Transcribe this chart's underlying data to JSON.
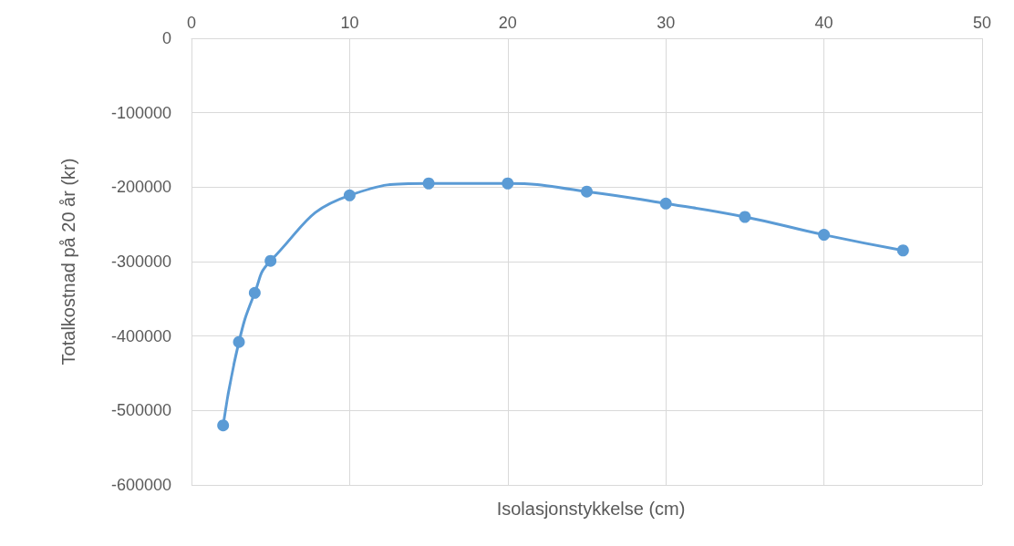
{
  "chart_data": {
    "type": "line",
    "xlabel": "Isolasjonstykkelse (cm)",
    "ylabel": "Totalkostnad på 20 år (kr)",
    "x": [
      2,
      3,
      4,
      5,
      10,
      15,
      20,
      25,
      30,
      35,
      40,
      45
    ],
    "series": [
      {
        "color": "#5b9bd5",
        "values": [
          -520000,
          -408000,
          -342000,
          -299000,
          -211000,
          -195000,
          -195000,
          -206000,
          -222000,
          -240000,
          -264000,
          -285000
        ]
      }
    ],
    "xlim": [
      0,
      50
    ],
    "xticks": [
      0,
      10,
      20,
      30,
      40,
      50
    ],
    "ylim": [
      -600000,
      0
    ],
    "yticks": [
      -600000,
      -500000,
      -400000,
      -300000,
      -200000,
      -100000,
      0
    ],
    "grid": true,
    "marker": "circle",
    "line_style": "solid"
  }
}
